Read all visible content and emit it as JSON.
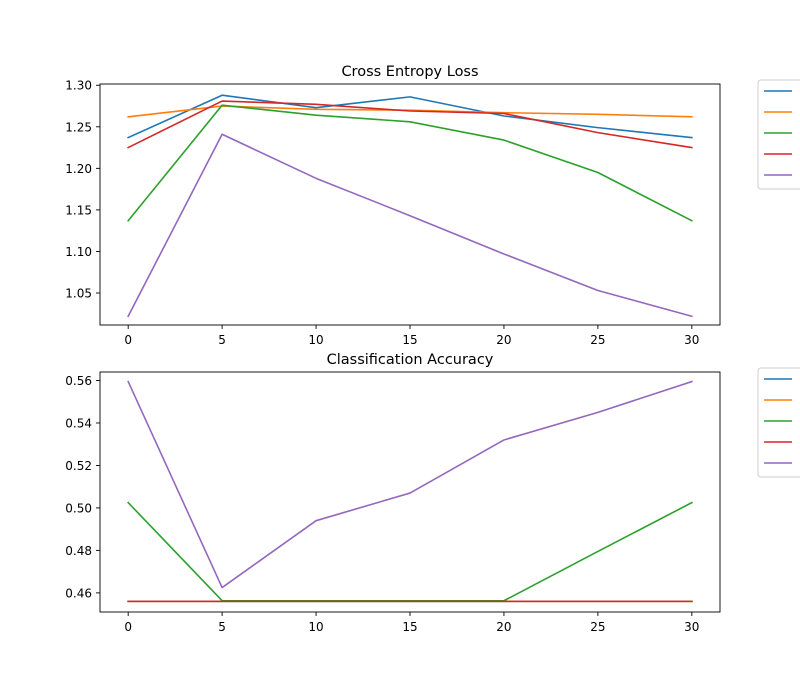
{
  "chart_data": [
    {
      "type": "line",
      "title": "Cross Entropy Loss",
      "xlabel": "",
      "ylabel": "",
      "x": [
        0,
        5,
        10,
        15,
        20,
        25,
        30
      ],
      "xlim": [
        -1.5,
        31.5
      ],
      "ylim": [
        1.0115,
        1.3015
      ],
      "xticks": [
        0,
        5,
        10,
        15,
        20,
        25,
        30
      ],
      "yticks": [
        1.05,
        1.1,
        1.15,
        1.2,
        1.25,
        1.3
      ],
      "ytick_labels": [
        "1.05",
        "1.10",
        "1.15",
        "1.20",
        "1.25",
        "1.30"
      ],
      "grid": false,
      "legend": "outside-right",
      "series": [
        {
          "color": "#1f77b4",
          "values": [
            1.237,
            1.288,
            1.273,
            1.286,
            1.263,
            1.249,
            1.237
          ]
        },
        {
          "color": "#ff7f0e",
          "values": [
            1.262,
            1.275,
            1.271,
            1.27,
            1.267,
            1.265,
            1.262
          ]
        },
        {
          "color": "#2ca02c",
          "values": [
            1.137,
            1.276,
            1.264,
            1.256,
            1.234,
            1.195,
            1.137
          ]
        },
        {
          "color": "#d62728",
          "values": [
            1.225,
            1.281,
            1.277,
            1.269,
            1.266,
            1.243,
            1.225
          ]
        },
        {
          "color": "#9467bd",
          "values": [
            1.022,
            1.241,
            1.188,
            1.143,
            1.097,
            1.053,
            1.022
          ]
        }
      ]
    },
    {
      "type": "line",
      "title": "Classification Accuracy",
      "xlabel": "",
      "ylabel": "",
      "x": [
        0,
        5,
        10,
        15,
        20,
        25,
        30
      ],
      "xlim": [
        -1.5,
        31.5
      ],
      "ylim": [
        0.451,
        0.564
      ],
      "xticks": [
        0,
        5,
        10,
        15,
        20,
        25,
        30
      ],
      "yticks": [
        0.46,
        0.48,
        0.5,
        0.52,
        0.54,
        0.56
      ],
      "ytick_labels": [
        "0.46",
        "0.48",
        "0.50",
        "0.52",
        "0.54",
        "0.56"
      ],
      "grid": false,
      "legend": "outside-right",
      "series": [
        {
          "color": "#1f77b4",
          "values": [
            0.456,
            0.456,
            0.456,
            0.456,
            0.456,
            0.456,
            0.456
          ]
        },
        {
          "color": "#ff7f0e",
          "values": [
            0.456,
            0.456,
            0.456,
            0.456,
            0.456,
            0.456,
            0.456
          ]
        },
        {
          "color": "#2ca02c",
          "values": [
            0.5025,
            0.4563,
            0.4563,
            0.4563,
            0.4563,
            0.4795,
            0.5025
          ]
        },
        {
          "color": "#d62728",
          "values": [
            0.456,
            0.456,
            0.456,
            0.456,
            0.456,
            0.456,
            0.456
          ]
        },
        {
          "color": "#9467bd",
          "values": [
            0.5595,
            0.4625,
            0.494,
            0.507,
            0.532,
            0.545,
            0.5595
          ]
        }
      ]
    }
  ]
}
